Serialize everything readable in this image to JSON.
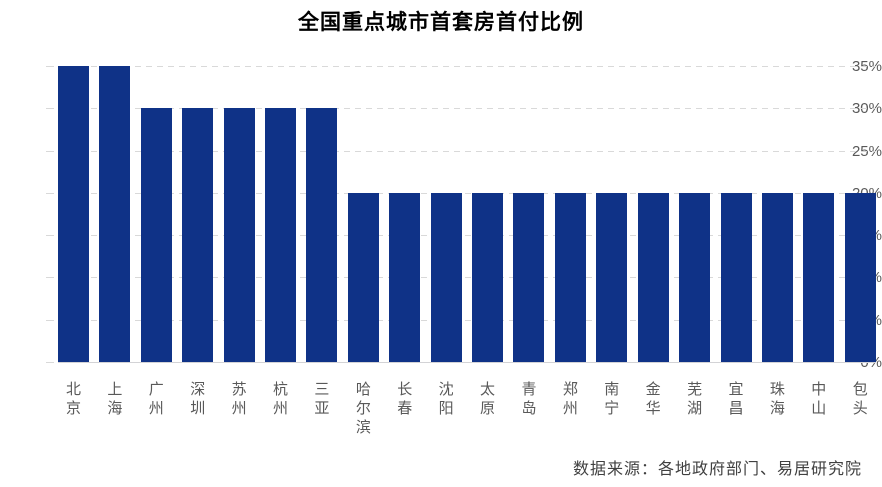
{
  "chart_data": {
    "type": "bar",
    "title": "全国重点城市首套房首付比例",
    "categories": [
      "北京",
      "上海",
      "广州",
      "深圳",
      "苏州",
      "杭州",
      "三亚",
      "哈尔滨",
      "长春",
      "沈阳",
      "太原",
      "青岛",
      "郑州",
      "南宁",
      "金华",
      "芜湖",
      "宜昌",
      "珠海",
      "中山",
      "包头"
    ],
    "values": [
      35,
      35,
      30,
      30,
      30,
      30,
      30,
      20,
      20,
      20,
      20,
      20,
      20,
      20,
      20,
      20,
      20,
      20,
      20,
      20
    ],
    "unit": "%",
    "xlabel": "",
    "ylabel": "",
    "ylim": [
      0,
      35
    ],
    "ytick_step": 5,
    "ytick_labels": [
      "0%",
      "5%",
      "10%",
      "15%",
      "20%",
      "25%",
      "30%",
      "35%"
    ],
    "grid": "horizontal-dashed",
    "legend": "none",
    "source_note": "数据来源：各地政府部门、易居研究院",
    "colors": {
      "bar": "#0f3287",
      "gridline": "#d9d9d9",
      "axis_line": "#d3d3d6",
      "tick_label": "#595959",
      "title": "#000000",
      "source": "#404040"
    }
  }
}
